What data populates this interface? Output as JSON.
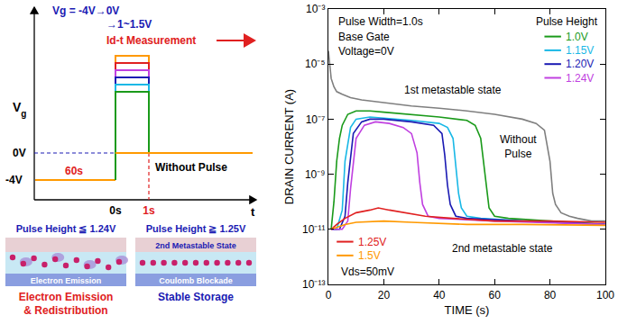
{
  "chart_data": {
    "type": "line",
    "x_label": "TIME (s)",
    "y_label": "DRAIN CURRENT (A)",
    "xlim": [
      0,
      100
    ],
    "xticks": [
      0,
      20,
      40,
      60,
      80,
      100
    ],
    "ylim": [
      1e-13,
      0.001
    ],
    "yticks": [
      {
        "value": 1e-13,
        "label": "10⁻¹³"
      },
      {
        "value": 1e-11,
        "label": "10⁻¹¹"
      },
      {
        "value": 1e-09,
        "label": "10⁻⁹"
      },
      {
        "value": 1e-07,
        "label": "10⁻⁷"
      },
      {
        "value": 1e-05,
        "label": "10⁻⁵"
      },
      {
        "value": 0.001,
        "label": "10⁻³"
      }
    ],
    "log": "y",
    "grid": false,
    "legend": "upper right",
    "annotations": {
      "pulse_width": "Pulse Width=1.0s",
      "base_gate": "Base Gate",
      "voltage": "Voltage=0V",
      "legend_title": "Pulse Height",
      "first_state": "1st metastable state",
      "without_pulse": "Without Pulse",
      "second_state": "2nd metastable state",
      "vds": "Vds=50mV"
    },
    "series": [
      {
        "name": "Without Pulse",
        "color": "#7f7f7f",
        "x": [
          0,
          0.5,
          1,
          2,
          3,
          5,
          8,
          12,
          20,
          30,
          40,
          50,
          60,
          70,
          75,
          78,
          80,
          81,
          82,
          84,
          87,
          90,
          95,
          100
        ],
        "values": [
          3e-05,
          8e-06,
          3e-06,
          1.5e-06,
          1e-06,
          8e-07,
          6e-07,
          5e-07,
          4e-07,
          3e-07,
          2.5e-07,
          2e-07,
          1.5e-07,
          1e-07,
          7e-08,
          4e-08,
          3e-09,
          2e-10,
          8e-11,
          4e-11,
          3e-11,
          2.5e-11,
          2e-11,
          2e-11
        ]
      },
      {
        "name": "1.0V",
        "color": "#1a9a1a",
        "x": [
          1,
          2,
          3,
          4,
          5,
          7,
          10,
          15,
          20,
          30,
          40,
          50,
          53,
          55,
          56,
          57,
          58,
          60,
          65,
          80,
          100
        ],
        "values": [
          1e-11,
          1e-10,
          3e-09,
          2e-08,
          6e-08,
          1.5e-07,
          2e-07,
          2e-07,
          1.8e-07,
          1.5e-07,
          1.2e-07,
          9e-08,
          6e-08,
          2e-08,
          3e-09,
          3e-10,
          6e-11,
          3e-11,
          2.5e-11,
          2e-11,
          1.5e-11
        ]
      },
      {
        "name": "1.15V",
        "color": "#19b8e6",
        "x": [
          1,
          3,
          5,
          6,
          8,
          10,
          15,
          20,
          30,
          40,
          43,
          45,
          46,
          47,
          48,
          50,
          55,
          70,
          100
        ],
        "values": [
          1e-11,
          1e-11,
          5e-11,
          3e-09,
          5e-08,
          1e-07,
          1.2e-07,
          1.1e-07,
          9e-08,
          7e-08,
          5e-08,
          2e-08,
          2e-09,
          2e-10,
          6e-11,
          3e-11,
          2.5e-11,
          2e-11,
          1.5e-11
        ]
      },
      {
        "name": "1.20V",
        "color": "#1a1ab3",
        "x": [
          1,
          4,
          6,
          7,
          9,
          12,
          15,
          20,
          30,
          38,
          41,
          42,
          43,
          44,
          46,
          50,
          70,
          100
        ],
        "values": [
          1e-11,
          1e-11,
          3e-11,
          5e-10,
          3e-08,
          8e-08,
          1e-07,
          1e-07,
          8e-08,
          6e-08,
          3e-08,
          5e-09,
          4e-10,
          8e-11,
          3e-11,
          2.5e-11,
          2e-11,
          1.5e-11
        ]
      },
      {
        "name": "1.24V",
        "color": "#c040e0",
        "x": [
          1,
          5,
          7,
          8,
          10,
          13,
          17,
          22,
          27,
          30,
          32,
          33,
          34,
          36,
          40,
          60,
          100
        ],
        "values": [
          1e-11,
          1e-11,
          2e-11,
          3e-10,
          2e-08,
          6e-08,
          8e-08,
          7e-08,
          5e-08,
          3e-08,
          6e-09,
          5e-10,
          8e-11,
          3e-11,
          2.5e-11,
          2e-11,
          1.5e-11
        ]
      },
      {
        "name": "1.25V",
        "color": "#e02020",
        "x": [
          1,
          3,
          6,
          10,
          15,
          18,
          22,
          28,
          35,
          45,
          60,
          80,
          100
        ],
        "values": [
          1e-11,
          1.5e-11,
          2.5e-11,
          4e-11,
          5e-11,
          6e-11,
          5e-11,
          4e-11,
          3e-11,
          2.5e-11,
          2e-11,
          2e-11,
          1.8e-11
        ]
      },
      {
        "name": "1.5V",
        "color": "#ff9900",
        "x": [
          1,
          3,
          6,
          10,
          20,
          30,
          50,
          70,
          100
        ],
        "values": [
          1e-11,
          1.2e-11,
          1.5e-11,
          1.8e-11,
          2e-11,
          1.8e-11,
          1.5e-11,
          1.5e-11,
          1.4e-11
        ]
      }
    ]
  },
  "diagram": {
    "vg_axis": {
      "text": "V",
      "subscript": "g"
    },
    "t_axis": "t",
    "sequence": [
      "Vg = -4V→0V",
      "→1~1.5V"
    ],
    "measurement": "Id-t Measurement",
    "levels": {
      "zero": "0V",
      "low": "-4V"
    },
    "duration": "60s",
    "times": {
      "start": "0s",
      "end": "1s"
    },
    "without_pulse": "Without Pulse",
    "panels": [
      {
        "heading": "Pulse Height ≦ 1.24V",
        "labels": [
          "Electron Emission"
        ],
        "caption": [
          "Electron Emission",
          "& Redistribution"
        ],
        "caption_color": "#e02020"
      },
      {
        "heading": "Pulse Height ≧ 1.25V",
        "labels": [
          "2nd Metastable State",
          "Coulomb Blockade"
        ],
        "caption": [
          "Stable Storage"
        ],
        "caption_color": "#1a1ab3"
      }
    ]
  }
}
